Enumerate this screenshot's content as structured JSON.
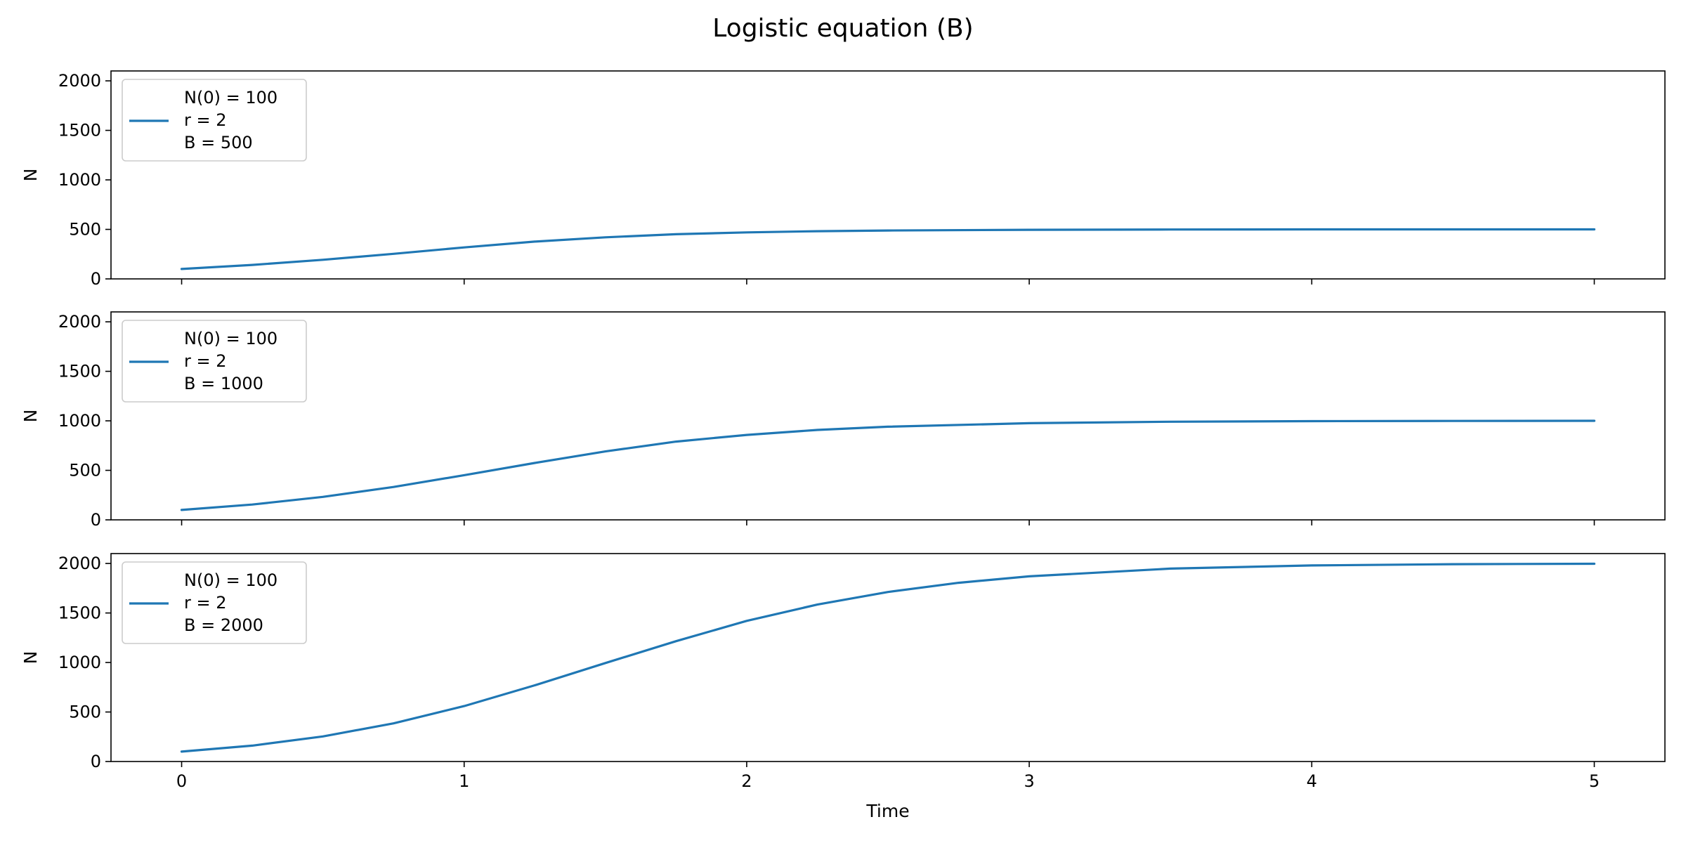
{
  "figure": {
    "title": "Logistic equation (B)",
    "xlabel": "Time",
    "line_color": "#1f77b4"
  },
  "chart_data": [
    {
      "type": "line",
      "ylabel": "N",
      "xlim": [
        -0.25,
        5.25
      ],
      "ylim": [
        0,
        2100
      ],
      "xticks": [
        0,
        1,
        2,
        3,
        4,
        5
      ],
      "yticks": [
        0,
        500,
        1000,
        1500,
        2000
      ],
      "show_xtick_labels": false,
      "grid": false,
      "legend_position": "upper-left",
      "series": [
        {
          "name": "N(0) = 100\nr = 2\nB = 500",
          "legend_lines": [
            "N(0) = 100",
            "r = 2",
            "B = 500"
          ],
          "color": "#1f77b4",
          "x": [
            0,
            0.25,
            0.5,
            0.75,
            1,
            1.25,
            1.5,
            1.75,
            2,
            2.25,
            2.5,
            3,
            3.5,
            4,
            4.5,
            5
          ],
          "y": [
            100,
            141,
            193,
            253,
            318,
            377,
            420,
            451,
            470,
            482,
            489,
            496,
            499,
            500,
            500,
            500
          ]
        }
      ]
    },
    {
      "type": "line",
      "ylabel": "N",
      "xlim": [
        -0.25,
        5.25
      ],
      "ylim": [
        0,
        2100
      ],
      "xticks": [
        0,
        1,
        2,
        3,
        4,
        5
      ],
      "yticks": [
        0,
        500,
        1000,
        1500,
        2000
      ],
      "show_xtick_labels": false,
      "grid": false,
      "legend_position": "upper-left",
      "series": [
        {
          "name": "N(0) = 100\nr = 2\nB = 1000",
          "legend_lines": [
            "N(0) = 100",
            "r = 2",
            "B = 1000"
          ],
          "color": "#1f77b4",
          "x": [
            0,
            0.25,
            0.5,
            0.75,
            1,
            1.25,
            1.5,
            1.75,
            2,
            2.25,
            2.5,
            3,
            3.5,
            4,
            4.5,
            5
          ],
          "y": [
            100,
            155,
            232,
            332,
            451,
            575,
            691,
            790,
            858,
            908,
            941,
            976,
            991,
            997,
            999,
            1000
          ]
        }
      ]
    },
    {
      "type": "line",
      "ylabel": "N",
      "xlim": [
        -0.25,
        5.25
      ],
      "ylim": [
        0,
        2100
      ],
      "xticks": [
        0,
        1,
        2,
        3,
        4,
        5
      ],
      "yticks": [
        0,
        500,
        1000,
        1500,
        2000
      ],
      "show_xtick_labels": true,
      "grid": false,
      "legend_position": "upper-left",
      "series": [
        {
          "name": "N(0) = 100\nr = 2\nB = 2000",
          "legend_lines": [
            "N(0) = 100",
            "r = 2",
            "B = 2000"
          ],
          "color": "#1f77b4",
          "x": [
            0,
            0.25,
            0.5,
            0.75,
            1,
            1.25,
            1.5,
            1.75,
            2,
            2.25,
            2.5,
            2.75,
            3,
            3.5,
            4,
            4.5,
            5
          ],
          "y": [
            100,
            160,
            253,
            385,
            560,
            770,
            995,
            1215,
            1420,
            1585,
            1712,
            1805,
            1870,
            1948,
            1980,
            1993,
            1997
          ]
        }
      ]
    }
  ]
}
